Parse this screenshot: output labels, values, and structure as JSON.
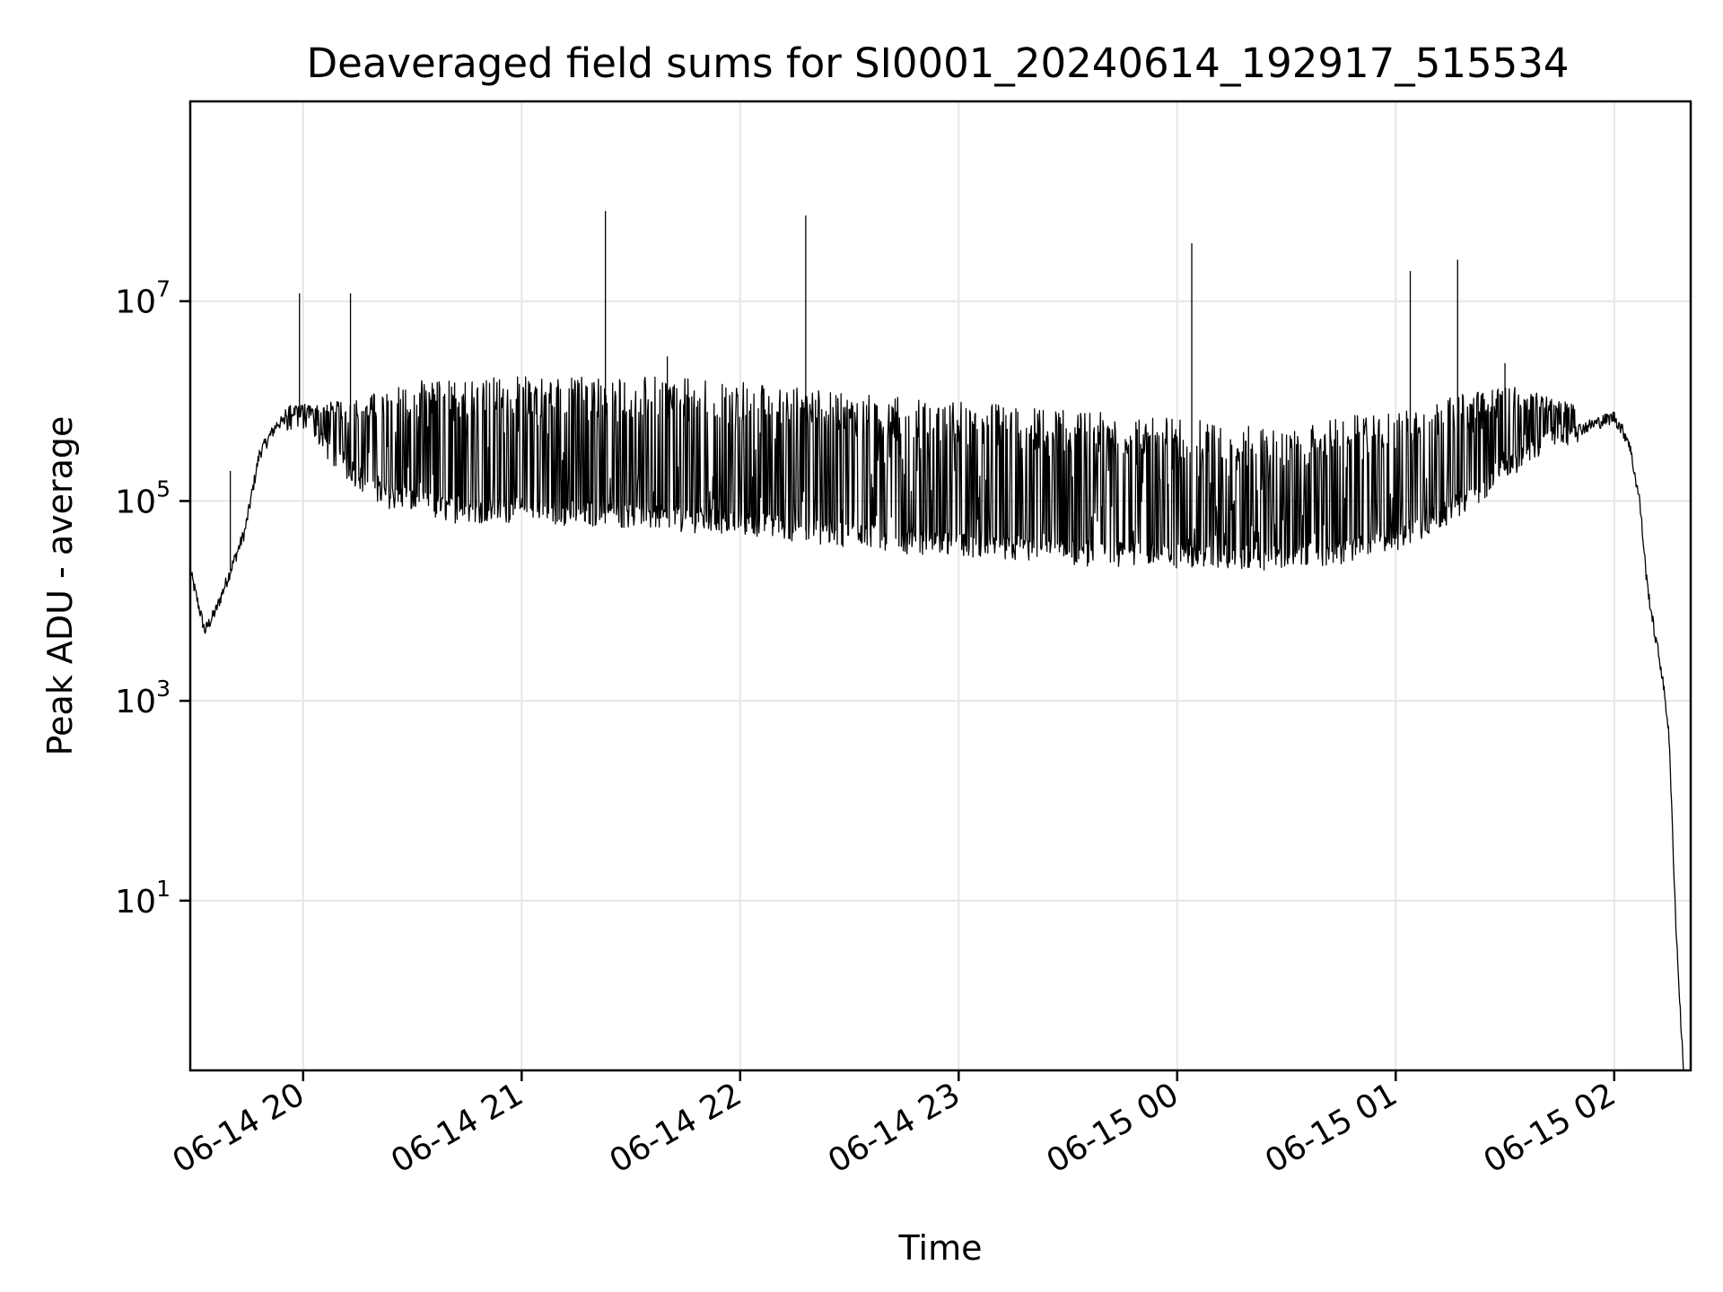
{
  "chart_data": {
    "type": "line",
    "title": "Deaveraged field sums for SI0001_20240614_192917_515534",
    "xlabel": "Time",
    "ylabel": "Peak ADU - average",
    "yscale": "log",
    "grid": true,
    "legend": "none",
    "xlim": [
      "2024-06-14 19:29",
      "2024-06-15 02:21"
    ],
    "ylim": [
      0.2,
      1000000000
    ],
    "x_ticks": [
      {
        "value": "2024-06-14 20:00",
        "label": "06-14 20"
      },
      {
        "value": "2024-06-14 21:00",
        "label": "06-14 21"
      },
      {
        "value": "2024-06-14 22:00",
        "label": "06-14 22"
      },
      {
        "value": "2024-06-14 23:00",
        "label": "06-14 23"
      },
      {
        "value": "2024-06-15 00:00",
        "label": "06-15 00"
      },
      {
        "value": "2024-06-15 01:00",
        "label": "06-15 01"
      },
      {
        "value": "2024-06-15 02:00",
        "label": "06-15 02"
      }
    ],
    "y_ticks": [
      {
        "value": 10,
        "base": "10",
        "exp": "1"
      },
      {
        "value": 1000,
        "base": "10",
        "exp": "3"
      },
      {
        "value": 100000,
        "base": "10",
        "exp": "5"
      },
      {
        "value": 10000000,
        "base": "10",
        "exp": "7"
      }
    ],
    "series": [
      {
        "color": "#000000",
        "baseline": {
          "x": [
            "2024-06-14 19:29",
            "2024-06-14 19:33",
            "2024-06-14 19:36",
            "2024-06-14 19:40",
            "2024-06-14 19:44",
            "2024-06-14 19:48",
            "2024-06-14 19:53",
            "2024-06-14 20:00",
            "2024-06-14 20:08",
            "2024-06-14 20:20",
            "2024-06-14 20:40",
            "2024-06-14 21:00",
            "2024-06-14 21:30",
            "2024-06-14 22:00",
            "2024-06-14 22:30",
            "2024-06-14 23:00",
            "2024-06-14 23:30",
            "2024-06-15 00:00",
            "2024-06-15 00:30",
            "2024-06-15 00:45",
            "2024-06-15 01:00",
            "2024-06-15 01:15",
            "2024-06-15 01:30",
            "2024-06-15 01:45",
            "2024-06-15 02:00",
            "2024-06-15 02:04",
            "2024-06-15 02:07",
            "2024-06-15 02:09",
            "2024-06-15 02:11",
            "2024-06-15 02:13",
            "2024-06-15 02:15",
            "2024-06-15 02:16",
            "2024-06-15 02:17",
            "2024-06-15 02:18",
            "2024-06-15 02:19"
          ],
          "y": [
            20000,
            5000,
            8000,
            20000,
            50000,
            300000,
            600000,
            700000,
            300000,
            120000,
            80000,
            80000,
            70000,
            60000,
            45000,
            35000,
            30000,
            28000,
            27000,
            30000,
            40000,
            80000,
            200000,
            450000,
            700000,
            400000,
            100000,
            15000,
            5000,
            2000,
            500,
            50,
            5,
            1,
            0.2
          ]
        },
        "envelope_top": {
          "x": [
            "2024-06-14 19:55",
            "2024-06-14 20:10",
            "2024-06-14 20:30",
            "2024-06-14 21:00",
            "2024-06-14 21:30",
            "2024-06-14 22:00",
            "2024-06-14 22:30",
            "2024-06-14 23:00",
            "2024-06-14 23:30",
            "2024-06-15 00:00",
            "2024-06-15 00:30",
            "2024-06-15 00:45",
            "2024-06-15 01:00",
            "2024-06-15 01:30",
            "2024-06-15 01:50"
          ],
          "y": [
            900000,
            1000000,
            1600000,
            1800000,
            1800000,
            1600000,
            1200000,
            1000000,
            800000,
            700000,
            500000,
            700000,
            800000,
            1500000,
            900000
          ]
        },
        "spikes": [
          {
            "x": "2024-06-14 19:40",
            "y": 200000
          },
          {
            "x": "2024-06-14 19:51",
            "y": 500000
          },
          {
            "x": "2024-06-14 19:59",
            "y": 12000000
          },
          {
            "x": "2024-06-14 20:13",
            "y": 12000000
          },
          {
            "x": "2024-06-14 21:23",
            "y": 80000000
          },
          {
            "x": "2024-06-14 21:40",
            "y": 2800000
          },
          {
            "x": "2024-06-14 22:18",
            "y": 72000000
          },
          {
            "x": "2024-06-15 00:04",
            "y": 38000000
          },
          {
            "x": "2024-06-15 01:04",
            "y": 20000000
          },
          {
            "x": "2024-06-15 01:17",
            "y": 26000000
          },
          {
            "x": "2024-06-15 01:30",
            "y": 2400000
          }
        ]
      }
    ]
  }
}
